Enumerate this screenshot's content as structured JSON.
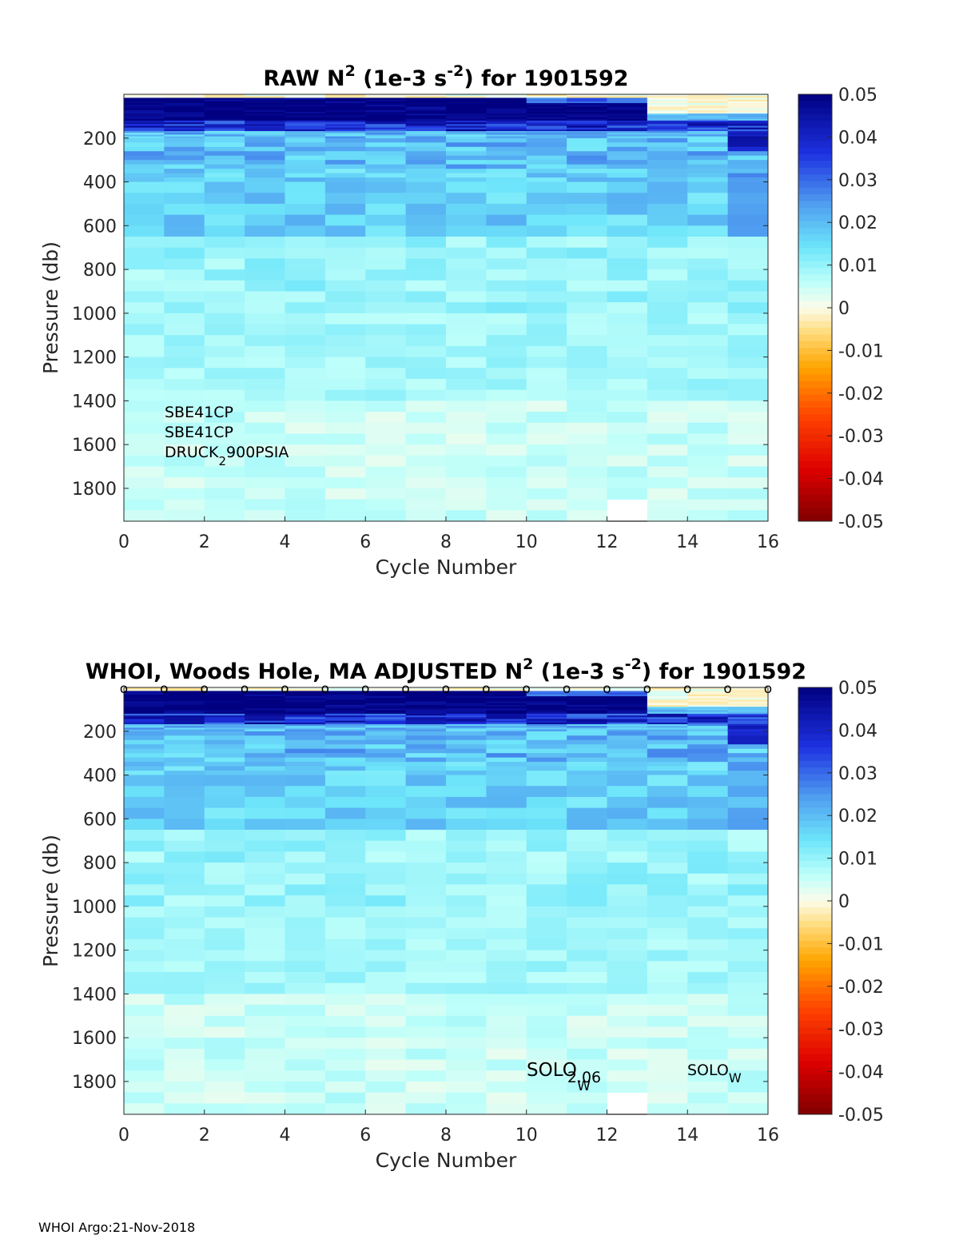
{
  "chart_data": [
    {
      "type": "heatmap",
      "title_main": "RAW N",
      "title_exp": "2",
      "title_mid": " (1e-3 s",
      "title_exp2": "-2",
      "title_end": ") for 1901592",
      "xlabel": "Cycle Number",
      "ylabel": "Pressure (db)",
      "xlim": [
        0,
        16
      ],
      "ylim": [
        0,
        1950
      ],
      "yreversed": true,
      "xticks": [
        0,
        2,
        4,
        6,
        8,
        10,
        12,
        14,
        16
      ],
      "yticks": [
        200,
        400,
        600,
        800,
        1000,
        1200,
        1400,
        1600,
        1800
      ],
      "colorbar": {
        "min": -0.05,
        "max": 0.05,
        "ticks": [
          "0.05",
          "0.04",
          "0.03",
          "0.02",
          "0.01",
          "0",
          "-0.01",
          "-0.02",
          "-0.03",
          "-0.04",
          "-0.05"
        ]
      },
      "annotations": {
        "line1": "SBE41CP",
        "line2": "SBE41CP",
        "line3a": "DRUCK",
        "line3b": "2",
        "line3c": "900PSIA"
      },
      "cycle_markers": false,
      "missing": {
        "cycle": 12,
        "pressure_from": 1850,
        "pressure_to": 1950
      }
    },
    {
      "type": "heatmap",
      "title_main": "WHOI, Woods Hole, MA  ADJUSTED N",
      "title_exp": "2",
      "title_mid": " (1e-3 s",
      "title_exp2": "-2",
      "title_end": ") for 1901592",
      "xlabel": "Cycle Number",
      "ylabel": "Pressure (db)",
      "xlim": [
        0,
        16
      ],
      "ylim": [
        0,
        1950
      ],
      "yreversed": true,
      "xticks": [
        0,
        2,
        4,
        6,
        8,
        10,
        12,
        14,
        16
      ],
      "yticks": [
        200,
        400,
        600,
        800,
        1000,
        1200,
        1400,
        1600,
        1800
      ],
      "colorbar": {
        "min": -0.05,
        "max": 0.05,
        "ticks": [
          "0.05",
          "0.04",
          "0.03",
          "0.02",
          "0.01",
          "0",
          "-0.01",
          "-0.02",
          "-0.03",
          "-0.04",
          "-0.05"
        ]
      },
      "annotations": {
        "solo1a": "SOLO",
        "solo1b": "2.06",
        "solo1c": "W",
        "solo2a": "SOLO",
        "solo2b": "W"
      },
      "cycle_markers": true,
      "marker_glyph": "o",
      "missing": {
        "cycle": 12,
        "pressure_from": 1850,
        "pressure_to": 1950
      }
    }
  ],
  "footer": "WHOI Argo:21-Nov-2018"
}
